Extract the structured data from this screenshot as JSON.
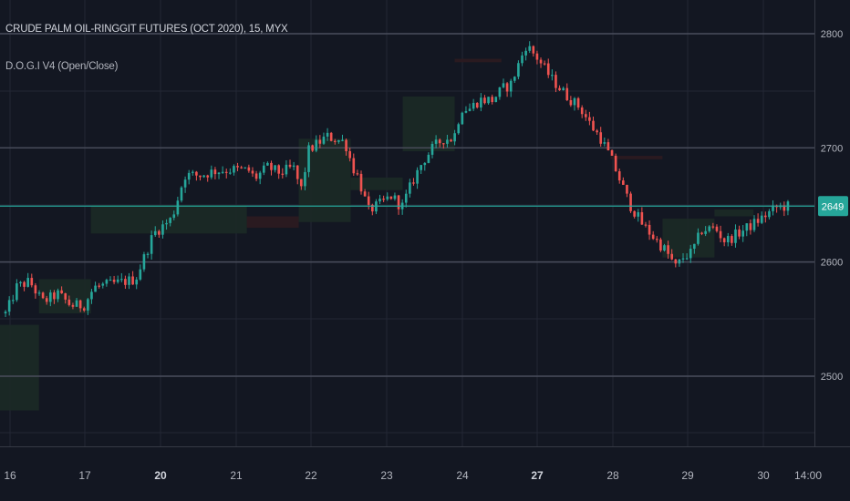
{
  "legend": {
    "symbol": "CRUDE PALM OIL-RINGGIT FUTURES (OCT 2020), 15, MYX",
    "indicator": "D.O.G.I V4 (Open/Close)"
  },
  "colors": {
    "background": "#131722",
    "grid": "#232734",
    "up": "#26a69a",
    "down": "#ef5350",
    "level_line": "#4a4e5c",
    "price_line": "#26a69a",
    "zone_up": "#1c2a26",
    "zone_down": "#2d1b20"
  },
  "chart_data": {
    "type": "candlestick",
    "y_axis": {
      "ticks": [
        2500,
        2600,
        2700,
        2800
      ],
      "range": [
        2450,
        2830
      ]
    },
    "x_axis": {
      "labels": [
        "16",
        "17",
        "20",
        "21",
        "22",
        "23",
        "24",
        "27",
        "28",
        "29",
        "30",
        "14:00"
      ],
      "bold": [
        "20",
        "27"
      ]
    },
    "horizontal_levels": [
      2500,
      2600,
      2700,
      2800
    ],
    "last_price": {
      "value": 2649,
      "label": "2649"
    },
    "zones": [
      {
        "from": 15.25,
        "to": 16.0,
        "low": 2470,
        "high": 2545,
        "dir": "up"
      },
      {
        "from": 16.0,
        "to": 17.0,
        "low": 2555,
        "high": 2585,
        "dir": "up"
      },
      {
        "from": 17.0,
        "to": 20.0,
        "low": 2625,
        "high": 2650,
        "dir": "up"
      },
      {
        "from": 20.0,
        "to": 21.0,
        "low": 2630,
        "high": 2640,
        "dir": "down"
      },
      {
        "from": 21.0,
        "to": 22.0,
        "low": 2635,
        "high": 2708,
        "dir": "up"
      },
      {
        "from": 22.0,
        "to": 23.0,
        "low": 2663,
        "high": 2674,
        "dir": "up"
      },
      {
        "from": 23.0,
        "to": 24.0,
        "low": 2697,
        "high": 2745,
        "dir": "up"
      },
      {
        "from": 24.0,
        "to": 24.9,
        "low": 2775,
        "high": 2778,
        "dir": "down"
      },
      {
        "from": 27.0,
        "to": 28.0,
        "low": 2690,
        "high": 2693,
        "dir": "down"
      },
      {
        "from": 28.0,
        "to": 29.0,
        "low": 2604,
        "high": 2638,
        "dir": "up"
      },
      {
        "from": 29.0,
        "to": 29.75,
        "low": 2640,
        "high": 2646,
        "dir": "up"
      }
    ],
    "anchors": [
      [
        15.3,
        2555
      ],
      [
        15.5,
        2578
      ],
      [
        15.75,
        2583
      ],
      [
        16.0,
        2565
      ],
      [
        16.3,
        2572
      ],
      [
        16.55,
        2562
      ],
      [
        16.8,
        2562
      ],
      [
        17.0,
        2578
      ],
      [
        17.25,
        2580
      ],
      [
        17.5,
        2582
      ],
      [
        17.8,
        2585
      ],
      [
        18.15,
        2625
      ],
      [
        18.5,
        2638
      ],
      [
        18.75,
        2676
      ],
      [
        19.05,
        2676
      ],
      [
        19.35,
        2680
      ],
      [
        19.7,
        2681
      ],
      [
        20.0,
        2680
      ],
      [
        20.1,
        2673
      ],
      [
        20.35,
        2683
      ],
      [
        20.6,
        2678
      ],
      [
        20.85,
        2683
      ],
      [
        21.0,
        2663
      ],
      [
        21.15,
        2698
      ],
      [
        21.5,
        2710
      ],
      [
        21.85,
        2705
      ],
      [
        22.0,
        2683
      ],
      [
        22.1,
        2675
      ],
      [
        22.3,
        2645
      ],
      [
        22.5,
        2650
      ],
      [
        22.75,
        2658
      ],
      [
        22.95,
        2648
      ],
      [
        23.15,
        2670
      ],
      [
        23.35,
        2688
      ],
      [
        23.55,
        2700
      ],
      [
        23.75,
        2708
      ],
      [
        23.95,
        2708
      ],
      [
        24.1,
        2735
      ],
      [
        24.25,
        2734
      ],
      [
        24.45,
        2742
      ],
      [
        24.7,
        2742
      ],
      [
        24.9,
        2752
      ],
      [
        25.05,
        2755
      ],
      [
        25.35,
        2790
      ],
      [
        25.55,
        2780
      ],
      [
        25.85,
        2760
      ],
      [
        26.15,
        2745
      ],
      [
        26.4,
        2735
      ],
      [
        26.6,
        2720
      ],
      [
        26.8,
        2708
      ],
      [
        27.0,
        2690
      ],
      [
        27.2,
        2668
      ],
      [
        27.35,
        2651
      ],
      [
        27.6,
        2633
      ],
      [
        27.85,
        2620
      ],
      [
        28.05,
        2610
      ],
      [
        28.25,
        2595
      ],
      [
        28.4,
        2605
      ],
      [
        28.55,
        2608
      ],
      [
        28.75,
        2628
      ],
      [
        29.0,
        2630
      ],
      [
        29.2,
        2618
      ],
      [
        29.45,
        2625
      ],
      [
        29.7,
        2632
      ],
      [
        29.95,
        2640
      ],
      [
        30.2,
        2648
      ],
      [
        30.45,
        2649
      ]
    ]
  }
}
